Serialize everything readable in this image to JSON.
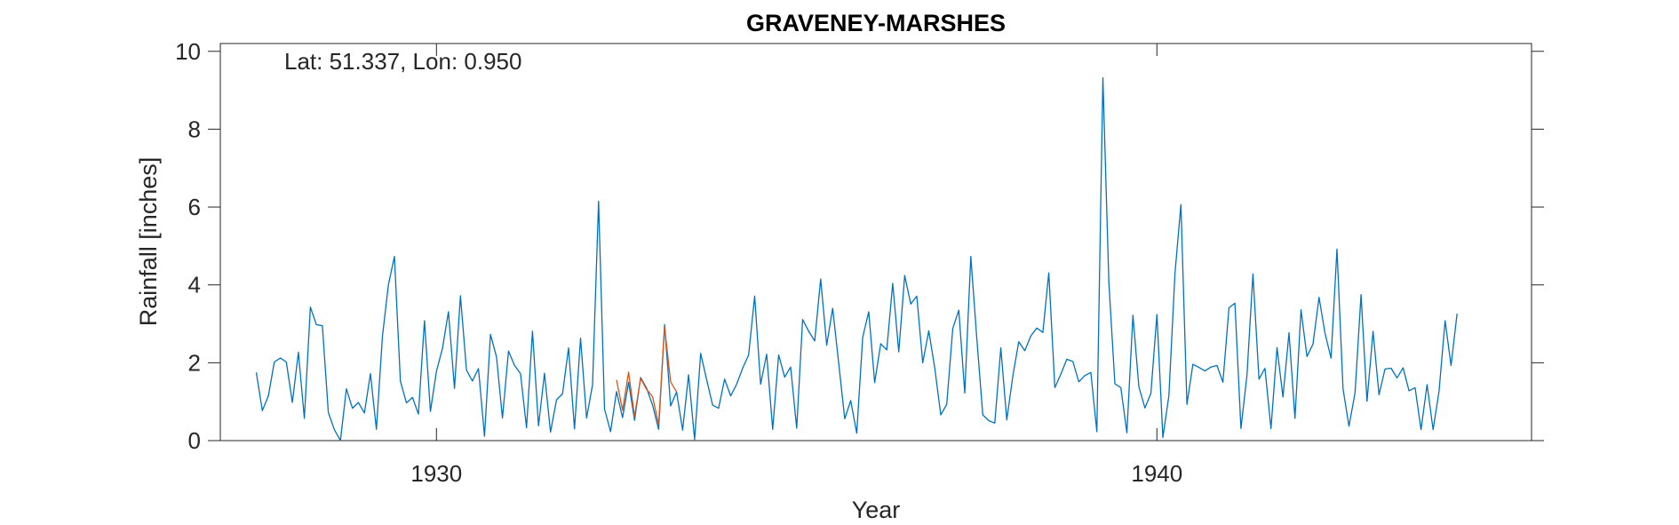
{
  "chart_data": {
    "type": "line",
    "title": "GRAVENEY-MARSHES",
    "annotation": "Lat: 51.337, Lon: 0.950",
    "xlabel": "Year",
    "ylabel": "Rainfall [inches]",
    "xlim": [
      1927,
      1945.2
    ],
    "ylim": [
      0,
      10.2
    ],
    "xticks": [
      1930,
      1940
    ],
    "xtick_labels": [
      "1930",
      "1940"
    ],
    "yticks": [
      0,
      2,
      4,
      6,
      8,
      10
    ],
    "ytick_labels": [
      "0",
      "2",
      "4",
      "6",
      "8",
      "10"
    ],
    "grid": false,
    "colors": {
      "primary": "#0072BD",
      "secondary": "#D95319",
      "axis": "#262626"
    },
    "series": [
      {
        "color": "#0072BD",
        "x_start": 1927.5,
        "x_step": 0.0833333,
        "values": [
          1.75,
          0.77,
          1.15,
          2.02,
          2.12,
          2.02,
          0.98,
          2.27,
          0.57,
          3.43,
          2.98,
          2.95,
          0.72,
          0.28,
          0.0,
          1.33,
          0.83,
          0.98,
          0.71,
          1.72,
          0.29,
          2.68,
          4.0,
          4.73,
          1.53,
          0.97,
          1.11,
          0.68,
          3.08,
          0.75,
          1.78,
          2.37,
          3.31,
          1.34,
          3.72,
          1.81,
          1.53,
          1.85,
          0.11,
          2.73,
          2.15,
          0.58,
          2.3,
          1.93,
          1.72,
          0.33,
          2.81,
          0.38,
          1.73,
          0.22,
          1.05,
          1.2,
          2.38,
          0.3,
          2.63,
          0.58,
          1.43,
          6.15,
          0.81,
          0.23,
          1.26,
          0.59,
          1.5,
          0.52,
          1.62,
          1.35,
          0.91,
          0.29,
          2.98,
          0.89,
          1.25,
          0.27,
          1.69,
          0.03,
          2.24,
          1.57,
          0.91,
          0.83,
          1.58,
          1.15,
          1.45,
          1.86,
          2.2,
          3.71,
          1.45,
          2.22,
          0.29,
          2.2,
          1.63,
          1.89,
          0.32,
          3.11,
          2.81,
          2.56,
          4.15,
          2.45,
          3.4,
          1.99,
          0.56,
          1.03,
          0.19,
          2.65,
          3.31,
          1.49,
          2.49,
          2.33,
          4.04,
          2.28,
          4.24,
          3.51,
          3.71,
          2.0,
          2.82,
          1.87,
          0.66,
          0.93,
          2.88,
          3.35,
          1.22,
          4.73,
          2.64,
          0.66,
          0.51,
          0.45,
          2.38,
          0.53,
          1.66,
          2.54,
          2.31,
          2.69,
          2.89,
          2.78,
          4.31,
          1.36,
          1.71,
          2.09,
          2.03,
          1.51,
          1.67,
          1.75,
          0.23,
          9.32,
          4.07,
          1.46,
          1.36,
          0.2,
          3.22,
          1.38,
          0.84,
          1.21,
          3.24,
          0.08,
          1.16,
          4.28,
          6.06,
          0.93,
          1.96,
          1.88,
          1.79,
          1.89,
          1.93,
          1.5,
          3.41,
          3.53,
          0.31,
          1.69,
          4.28,
          1.58,
          1.86,
          0.31,
          2.39,
          1.12,
          2.77,
          0.57,
          3.36,
          2.16,
          2.48,
          3.68,
          2.76,
          2.12,
          4.92,
          1.33,
          0.37,
          1.22,
          3.75,
          1.01,
          2.81,
          1.18,
          1.84,
          1.86,
          1.61,
          1.87,
          1.28,
          1.36,
          0.28,
          1.44,
          0.28,
          1.27,
          3.08,
          1.93,
          3.26
        ]
      },
      {
        "color": "#D95319",
        "x_start": 1932.5,
        "x_step": 0.0833333,
        "values": [
          1.56,
          0.78,
          1.76,
          0.62,
          1.6,
          1.32,
          1.13,
          0.41,
          2.92,
          1.51,
          1.25
        ]
      }
    ]
  }
}
